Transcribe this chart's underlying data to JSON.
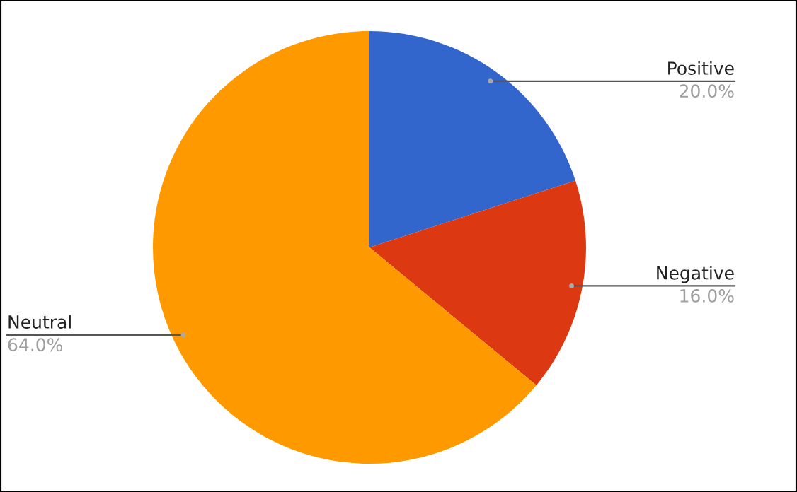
{
  "chart_data": {
    "type": "pie",
    "categories": [
      "Positive",
      "Negative",
      "Neutral"
    ],
    "values": [
      20,
      16,
      64
    ],
    "value_labels": [
      "20.0%",
      "16.0%",
      "64.0%"
    ],
    "colors": [
      "#3366cc",
      "#dc3912",
      "#ff9900"
    ],
    "legend": false
  }
}
